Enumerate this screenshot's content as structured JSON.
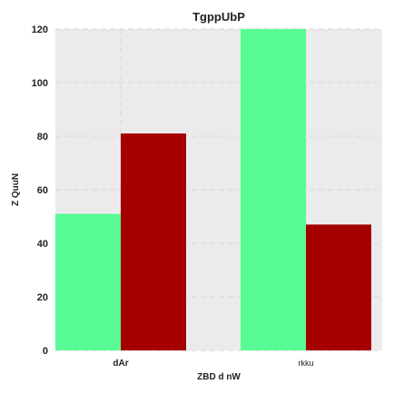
{
  "chart_data": {
    "type": "bar",
    "title": "TgppUbP",
    "xlabel": "ZBD d  nW",
    "ylabel": "Z QuuN",
    "categories": [
      "dAr",
      "rkku"
    ],
    "series": [
      {
        "values": [
          51,
          120
        ],
        "color": "#59fb94"
      },
      {
        "values": [
          81,
          47
        ],
        "color": "#a40000"
      }
    ],
    "ylim": [
      0,
      120
    ],
    "yticks": [
      0,
      20,
      40,
      60,
      80,
      100,
      120
    ],
    "grid": true,
    "background": "#ebebeb"
  }
}
